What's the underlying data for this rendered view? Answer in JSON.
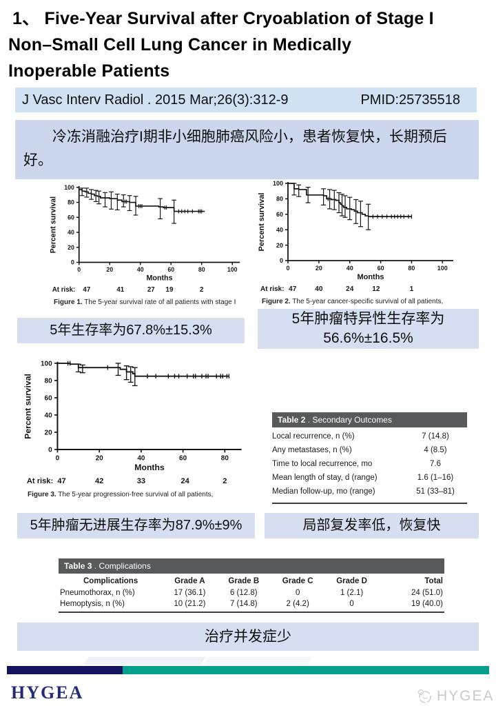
{
  "title": {
    "lines": [
      "1、 Five-Year Survival after Cryoablation of Stage I",
      "Non–Small Cell Lung Cancer in Medically",
      "Inoperable Patients"
    ]
  },
  "citation": {
    "journal": "J Vasc Interv Radiol . 2015 Mar;26(3):312-9",
    "pmid": "PMID:25735518"
  },
  "summary": {
    "text": "冷冻消融治疗I期非小细胞肺癌风险小，患者恢复快，长期预后好。"
  },
  "callouts": {
    "c1": {
      "line1": "5年生存率为67.8%±15.3%"
    },
    "c2": {
      "line1": "5年肿瘤特异性生存率为",
      "line2": "56.6%±16.5%"
    },
    "c3": {
      "line1": "5年肿瘤无进展生存率为87.9%±9%"
    },
    "c4": {
      "line1": "局部复发率低，恢复快"
    },
    "c5": {
      "line1": "治疗并发症少"
    }
  },
  "tables": {
    "table2": {
      "band_bold": "Table 2",
      "band_rest": " . Secondary Outcomes",
      "rows": [
        {
          "label": "Local recurrence, n (%)",
          "value": "7 (14.8)"
        },
        {
          "label": "Any metastases, n (%)",
          "value": "4 (8.5)"
        },
        {
          "label": "Time to local recurrence, mo",
          "value": "7.6"
        },
        {
          "label": "Mean length of stay, d (range)",
          "value": "1.6 (1–16)"
        },
        {
          "label": "Median follow-up, mo (range)",
          "value": "51 (33–81)"
        }
      ]
    },
    "table3": {
      "band_bold": "Table 3",
      "band_rest": " . Complications",
      "headers": [
        "Complications",
        "Grade A",
        "Grade B",
        "Grade C",
        "Grade D",
        "Total"
      ],
      "rows": [
        {
          "cells": [
            "Pneumothorax, n (%)",
            "17 (36.1)",
            "6 (12.8)",
            "0",
            "1 (2.1)",
            "24 (51.0)"
          ]
        },
        {
          "cells": [
            "Hemoptysis, n (%)",
            "10 (21.2)",
            "7 (14.8)",
            "2 (4.2)",
            "0",
            "19 (40.0)"
          ]
        }
      ]
    }
  },
  "footer": {
    "brand": "HYGEA",
    "watermark": "HYGEA",
    "navy": "#131360",
    "teal": "#00a08d"
  },
  "chart_data": [
    {
      "type": "line",
      "subtype": "kaplan-meier",
      "title": "",
      "xlabel": "Months",
      "ylabel": "Percent survival",
      "ylim": [
        0,
        100
      ],
      "yticks": [
        0,
        20,
        40,
        60,
        80,
        100
      ],
      "xticks": [
        0,
        20,
        40,
        60,
        80,
        100
      ],
      "x_domain_max": 105,
      "steps": [
        [
          0,
          97
        ],
        [
          2,
          95
        ],
        [
          4,
          94
        ],
        [
          6,
          92
        ],
        [
          8,
          91
        ],
        [
          10,
          89
        ],
        [
          12,
          88
        ],
        [
          14,
          86
        ],
        [
          20,
          85
        ],
        [
          25,
          83
        ],
        [
          28,
          81
        ],
        [
          33,
          80
        ],
        [
          37,
          75
        ],
        [
          52,
          74
        ],
        [
          55,
          73
        ],
        [
          62,
          68
        ],
        [
          82,
          68
        ]
      ],
      "error_bars": [
        {
          "x": 2,
          "lo": 89,
          "hi": 99
        },
        {
          "x": 5,
          "lo": 87,
          "hi": 99
        },
        {
          "x": 8,
          "lo": 84,
          "hi": 97
        },
        {
          "x": 11,
          "lo": 81,
          "hi": 96
        },
        {
          "x": 13,
          "lo": 78,
          "hi": 95
        },
        {
          "x": 17,
          "lo": 74,
          "hi": 93
        },
        {
          "x": 21,
          "lo": 71,
          "hi": 94
        },
        {
          "x": 25,
          "lo": 70,
          "hi": 91
        },
        {
          "x": 29,
          "lo": 74,
          "hi": 90
        },
        {
          "x": 33,
          "lo": 69,
          "hi": 89
        },
        {
          "x": 37,
          "lo": 63,
          "hi": 88
        },
        {
          "x": 53,
          "lo": 58,
          "hi": 85
        },
        {
          "x": 62,
          "lo": 52,
          "hi": 83
        }
      ],
      "censor_marks": [
        [
          30,
          81
        ],
        [
          31,
          81
        ],
        [
          39,
          75
        ],
        [
          40,
          75
        ],
        [
          41,
          75
        ],
        [
          56,
          73
        ],
        [
          57,
          73
        ],
        [
          65,
          68
        ],
        [
          67,
          68
        ],
        [
          69,
          68
        ],
        [
          71,
          68
        ],
        [
          74,
          68
        ],
        [
          78,
          68
        ],
        [
          79,
          68
        ],
        [
          80,
          68
        ]
      ],
      "at_risk_label": "At risk:",
      "at_risk": [
        "47",
        "41",
        "27",
        "19",
        "2"
      ],
      "at_risk_months": [
        5,
        27,
        47,
        59,
        80
      ],
      "caption_bold": "Figure 1.",
      "caption_rest": "  The 5-year survival rate of all patients with stage I"
    },
    {
      "type": "line",
      "subtype": "kaplan-meier",
      "title": "",
      "xlabel": "Months",
      "ylabel": "Percent survival",
      "ylim": [
        0,
        100
      ],
      "yticks": [
        0,
        20,
        40,
        60,
        80,
        100
      ],
      "xticks": [
        0,
        20,
        40,
        60,
        80,
        100
      ],
      "x_domain_max": 107,
      "steps": [
        [
          0,
          100
        ],
        [
          4,
          93
        ],
        [
          7,
          92
        ],
        [
          12,
          85
        ],
        [
          23,
          84
        ],
        [
          25,
          80
        ],
        [
          28,
          79
        ],
        [
          31,
          78
        ],
        [
          33,
          75
        ],
        [
          34,
          73
        ],
        [
          35,
          71
        ],
        [
          36,
          69
        ],
        [
          38,
          67
        ],
        [
          41,
          66
        ],
        [
          43,
          64
        ],
        [
          45,
          62
        ],
        [
          48,
          60
        ],
        [
          50,
          58
        ],
        [
          52,
          57
        ],
        [
          80,
          57
        ]
      ],
      "error_bars": [
        {
          "x": 4,
          "lo": 85,
          "hi": 100
        },
        {
          "x": 7,
          "lo": 83,
          "hi": 98
        },
        {
          "x": 13,
          "lo": 75,
          "hi": 95
        },
        {
          "x": 23,
          "lo": 72,
          "hi": 93
        },
        {
          "x": 27,
          "lo": 67,
          "hi": 92
        },
        {
          "x": 30,
          "lo": 66,
          "hi": 91
        },
        {
          "x": 33,
          "lo": 62,
          "hi": 88
        },
        {
          "x": 35,
          "lo": 58,
          "hi": 86
        },
        {
          "x": 37,
          "lo": 56,
          "hi": 84
        },
        {
          "x": 40,
          "lo": 53,
          "hi": 82
        },
        {
          "x": 44,
          "lo": 48,
          "hi": 79
        },
        {
          "x": 47,
          "lo": 44,
          "hi": 77
        },
        {
          "x": 52,
          "lo": 40,
          "hi": 73
        }
      ],
      "censor_marks": [
        [
          26,
          80
        ],
        [
          27,
          80
        ],
        [
          55,
          57
        ],
        [
          58,
          57
        ],
        [
          61,
          57
        ],
        [
          64,
          57
        ],
        [
          67,
          57
        ],
        [
          69,
          57
        ],
        [
          71,
          57
        ],
        [
          73,
          57
        ],
        [
          75,
          57
        ],
        [
          78,
          57
        ],
        [
          80,
          57
        ]
      ],
      "at_risk_label": "At risk:",
      "at_risk": [
        "47",
        "40",
        "24",
        "12",
        "1"
      ],
      "at_risk_months": [
        3,
        20,
        40,
        57,
        80
      ],
      "caption_bold": "Figure 2.",
      "caption_rest": "  The 5-year cancer-specific survival of all patients,"
    },
    {
      "type": "line",
      "subtype": "kaplan-meier",
      "title": "",
      "xlabel": "Months",
      "ylabel": "Percent survival",
      "ylim": [
        0,
        100
      ],
      "yticks": [
        0,
        20,
        40,
        60,
        80,
        100
      ],
      "xticks": [
        0,
        20,
        40,
        60,
        80
      ],
      "x_domain_max": 88,
      "steps": [
        [
          0,
          100
        ],
        [
          6,
          99
        ],
        [
          10,
          95
        ],
        [
          30,
          93
        ],
        [
          33,
          90
        ],
        [
          36,
          88
        ],
        [
          37,
          85
        ],
        [
          82,
          85
        ]
      ],
      "error_bars": [
        {
          "x": 10,
          "lo": 90,
          "hi": 99
        },
        {
          "x": 12,
          "lo": 89,
          "hi": 98
        },
        {
          "x": 29,
          "lo": 86,
          "hi": 100
        },
        {
          "x": 33,
          "lo": 81,
          "hi": 97
        },
        {
          "x": 35,
          "lo": 78,
          "hi": 96
        },
        {
          "x": 37,
          "lo": 74,
          "hi": 95
        }
      ],
      "censor_marks": [
        [
          5,
          100
        ],
        [
          6,
          100
        ],
        [
          24,
          95
        ],
        [
          43,
          85
        ],
        [
          47,
          85
        ],
        [
          53,
          85
        ],
        [
          56,
          85
        ],
        [
          58,
          85
        ],
        [
          62,
          85
        ],
        [
          65,
          85
        ],
        [
          66,
          85
        ],
        [
          69,
          85
        ],
        [
          71,
          85
        ],
        [
          72,
          85
        ],
        [
          76,
          85
        ],
        [
          78,
          85
        ],
        [
          79,
          85
        ],
        [
          81,
          85
        ],
        [
          82,
          85
        ]
      ],
      "at_risk_label": "At risk:",
      "at_risk": [
        "47",
        "42",
        "33",
        "24",
        "2"
      ],
      "at_risk_months": [
        2,
        20,
        40,
        61,
        80
      ],
      "caption_bold": "Figure 3.",
      "caption_rest": "  The 5-year progression-free survival of all patients,"
    }
  ]
}
